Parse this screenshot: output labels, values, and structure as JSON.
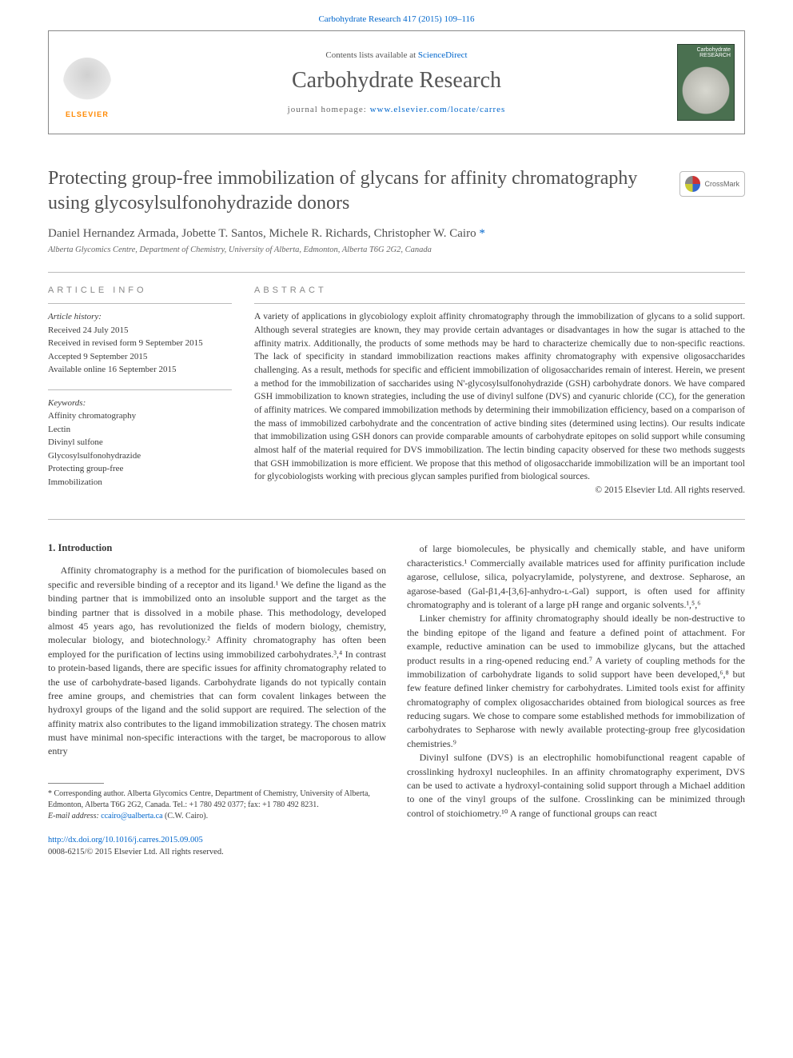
{
  "colors": {
    "link": "#0066cc",
    "text": "#3a3a3a",
    "muted": "#666666",
    "elsevier_orange": "#ff8800",
    "cover_green": "#4a7050"
  },
  "journal_ref": {
    "prefix": "Carbohydrate Research 417 (2015) 109–116",
    "link_text": "Carbohydrate Research 417 (2015) 109–116"
  },
  "header": {
    "contents_list_pre": "Contents lists available at ",
    "contents_list_link": "ScienceDirect",
    "journal_name": "Carbohydrate Research",
    "homepage_pre": "journal homepage: ",
    "homepage_link": "www.elsevier.com/locate/carres",
    "elsevier_label": "ELSEVIER",
    "cover_title": "Carbohydrate RESEARCH"
  },
  "crossmark": {
    "label": "CrossMark"
  },
  "article": {
    "title": "Protecting group-free immobilization of glycans for affinity chromatography using glycosylsulfonohydrazide donors",
    "authors": "Daniel Hernandez Armada, Jobette T. Santos, Michele R. Richards, Christopher W. Cairo",
    "corr_marker": "*",
    "affiliation": "Alberta Glycomics Centre, Department of Chemistry, University of Alberta, Edmonton, Alberta T6G 2G2, Canada"
  },
  "info": {
    "heading": "ARTICLE INFO",
    "history_label": "Article history:",
    "history": [
      "Received 24 July 2015",
      "Received in revised form 9 September 2015",
      "Accepted 9 September 2015",
      "Available online 16 September 2015"
    ],
    "keywords_label": "Keywords:",
    "keywords": [
      "Affinity chromatography",
      "Lectin",
      "Divinyl sulfone",
      "Glycosylsulfonohydrazide",
      "Protecting group-free",
      "Immobilization"
    ]
  },
  "abstract": {
    "heading": "ABSTRACT",
    "text": "A variety of applications in glycobiology exploit affinity chromatography through the immobilization of glycans to a solid support. Although several strategies are known, they may provide certain advantages or disadvantages in how the sugar is attached to the affinity matrix. Additionally, the products of some methods may be hard to characterize chemically due to non-specific reactions. The lack of specificity in standard immobilization reactions makes affinity chromatography with expensive oligosaccharides challenging. As a result, methods for specific and efficient immobilization of oligosaccharides remain of interest. Herein, we present a method for the immobilization of saccharides using N'-glycosylsulfonohydrazide (GSH) carbohydrate donors. We have compared GSH immobilization to known strategies, including the use of divinyl sulfone (DVS) and cyanuric chloride (CC), for the generation of affinity matrices. We compared immobilization methods by determining their immobilization efficiency, based on a comparison of the mass of immobilized carbohydrate and the concentration of active binding sites (determined using lectins). Our results indicate that immobilization using GSH donors can provide comparable amounts of carbohydrate epitopes on solid support while consuming almost half of the material required for DVS immobilization. The lectin binding capacity observed for these two methods suggests that GSH immobilization is more efficient. We propose that this method of oligosaccharide immobilization will be an important tool for glycobiologists working with precious glycan samples purified from biological sources.",
    "copyright": "© 2015 Elsevier Ltd. All rights reserved."
  },
  "body": {
    "intro_heading": "1. Introduction",
    "col1_p1": "Affinity chromatography is a method for the purification of biomolecules based on specific and reversible binding of a receptor and its ligand.¹ We define the ligand as the binding partner that is immobilized onto an insoluble support and the target as the binding partner that is dissolved in a mobile phase. This methodology, developed almost 45 years ago, has revolutionized the fields of modern biology, chemistry, molecular biology, and biotechnology.² Affinity chromatography has often been employed for the purification of lectins using immobilized carbohydrates.³,⁴ In contrast to protein-based ligands, there are specific issues for affinity chromatography related to the use of carbohydrate-based ligands. Carbohydrate ligands do not typically contain free amine groups, and chemistries that can form covalent linkages between the hydroxyl groups of the ligand and the solid support are required. The selection of the affinity matrix also contributes to the ligand immobilization strategy. The chosen matrix must have minimal non-specific interactions with the target, be macroporous to allow entry",
    "col2_p1": "of large biomolecules, be physically and chemically stable, and have uniform characteristics.¹ Commercially available matrices used for affinity purification include agarose, cellulose, silica, polyacrylamide, polystyrene, and dextrose. Sepharose, an agarose-based (Gal-β1,4-[3,6]-anhydro-ʟ-Gal) support, is often used for affinity chromatography and is tolerant of a large pH range and organic solvents.¹,⁵,⁶",
    "col2_p2": "Linker chemistry for affinity chromatography should ideally be non-destructive to the binding epitope of the ligand and feature a defined point of attachment. For example, reductive amination can be used to immobilize glycans, but the attached product results in a ring-opened reducing end.⁷ A variety of coupling methods for the immobilization of carbohydrate ligands to solid support have been developed,⁶,⁸ but few feature defined linker chemistry for carbohydrates. Limited tools exist for affinity chromatography of complex oligosaccharides obtained from biological sources as free reducing sugars. We chose to compare some established methods for immobilization of carbohydrates to Sepharose with newly available protecting-group free glycosidation chemistries.⁹",
    "col2_p3": "Divinyl sulfone (DVS) is an electrophilic homobifunctional reagent capable of crosslinking hydroxyl nucleophiles. In an affinity chromatography experiment, DVS can be used to activate a hydroxyl-containing solid support through a Michael addition to one of the vinyl groups of the sulfone. Crosslinking can be minimized through control of stoichiometry.¹⁰ A range of functional groups can react"
  },
  "footnote": {
    "corr": "* Corresponding author. Alberta Glycomics Centre, Department of Chemistry, University of Alberta, Edmonton, Alberta T6G 2G2, Canada. Tel.: +1 780 492 0377; fax: +1 780 492 8231.",
    "email_label": "E-mail address: ",
    "email": "ccairo@ualberta.ca",
    "email_suffix": " (C.W. Cairo)."
  },
  "doi": {
    "url": "http://dx.doi.org/10.1016/j.carres.2015.09.005",
    "issn_line": "0008-6215/© 2015 Elsevier Ltd. All rights reserved."
  }
}
